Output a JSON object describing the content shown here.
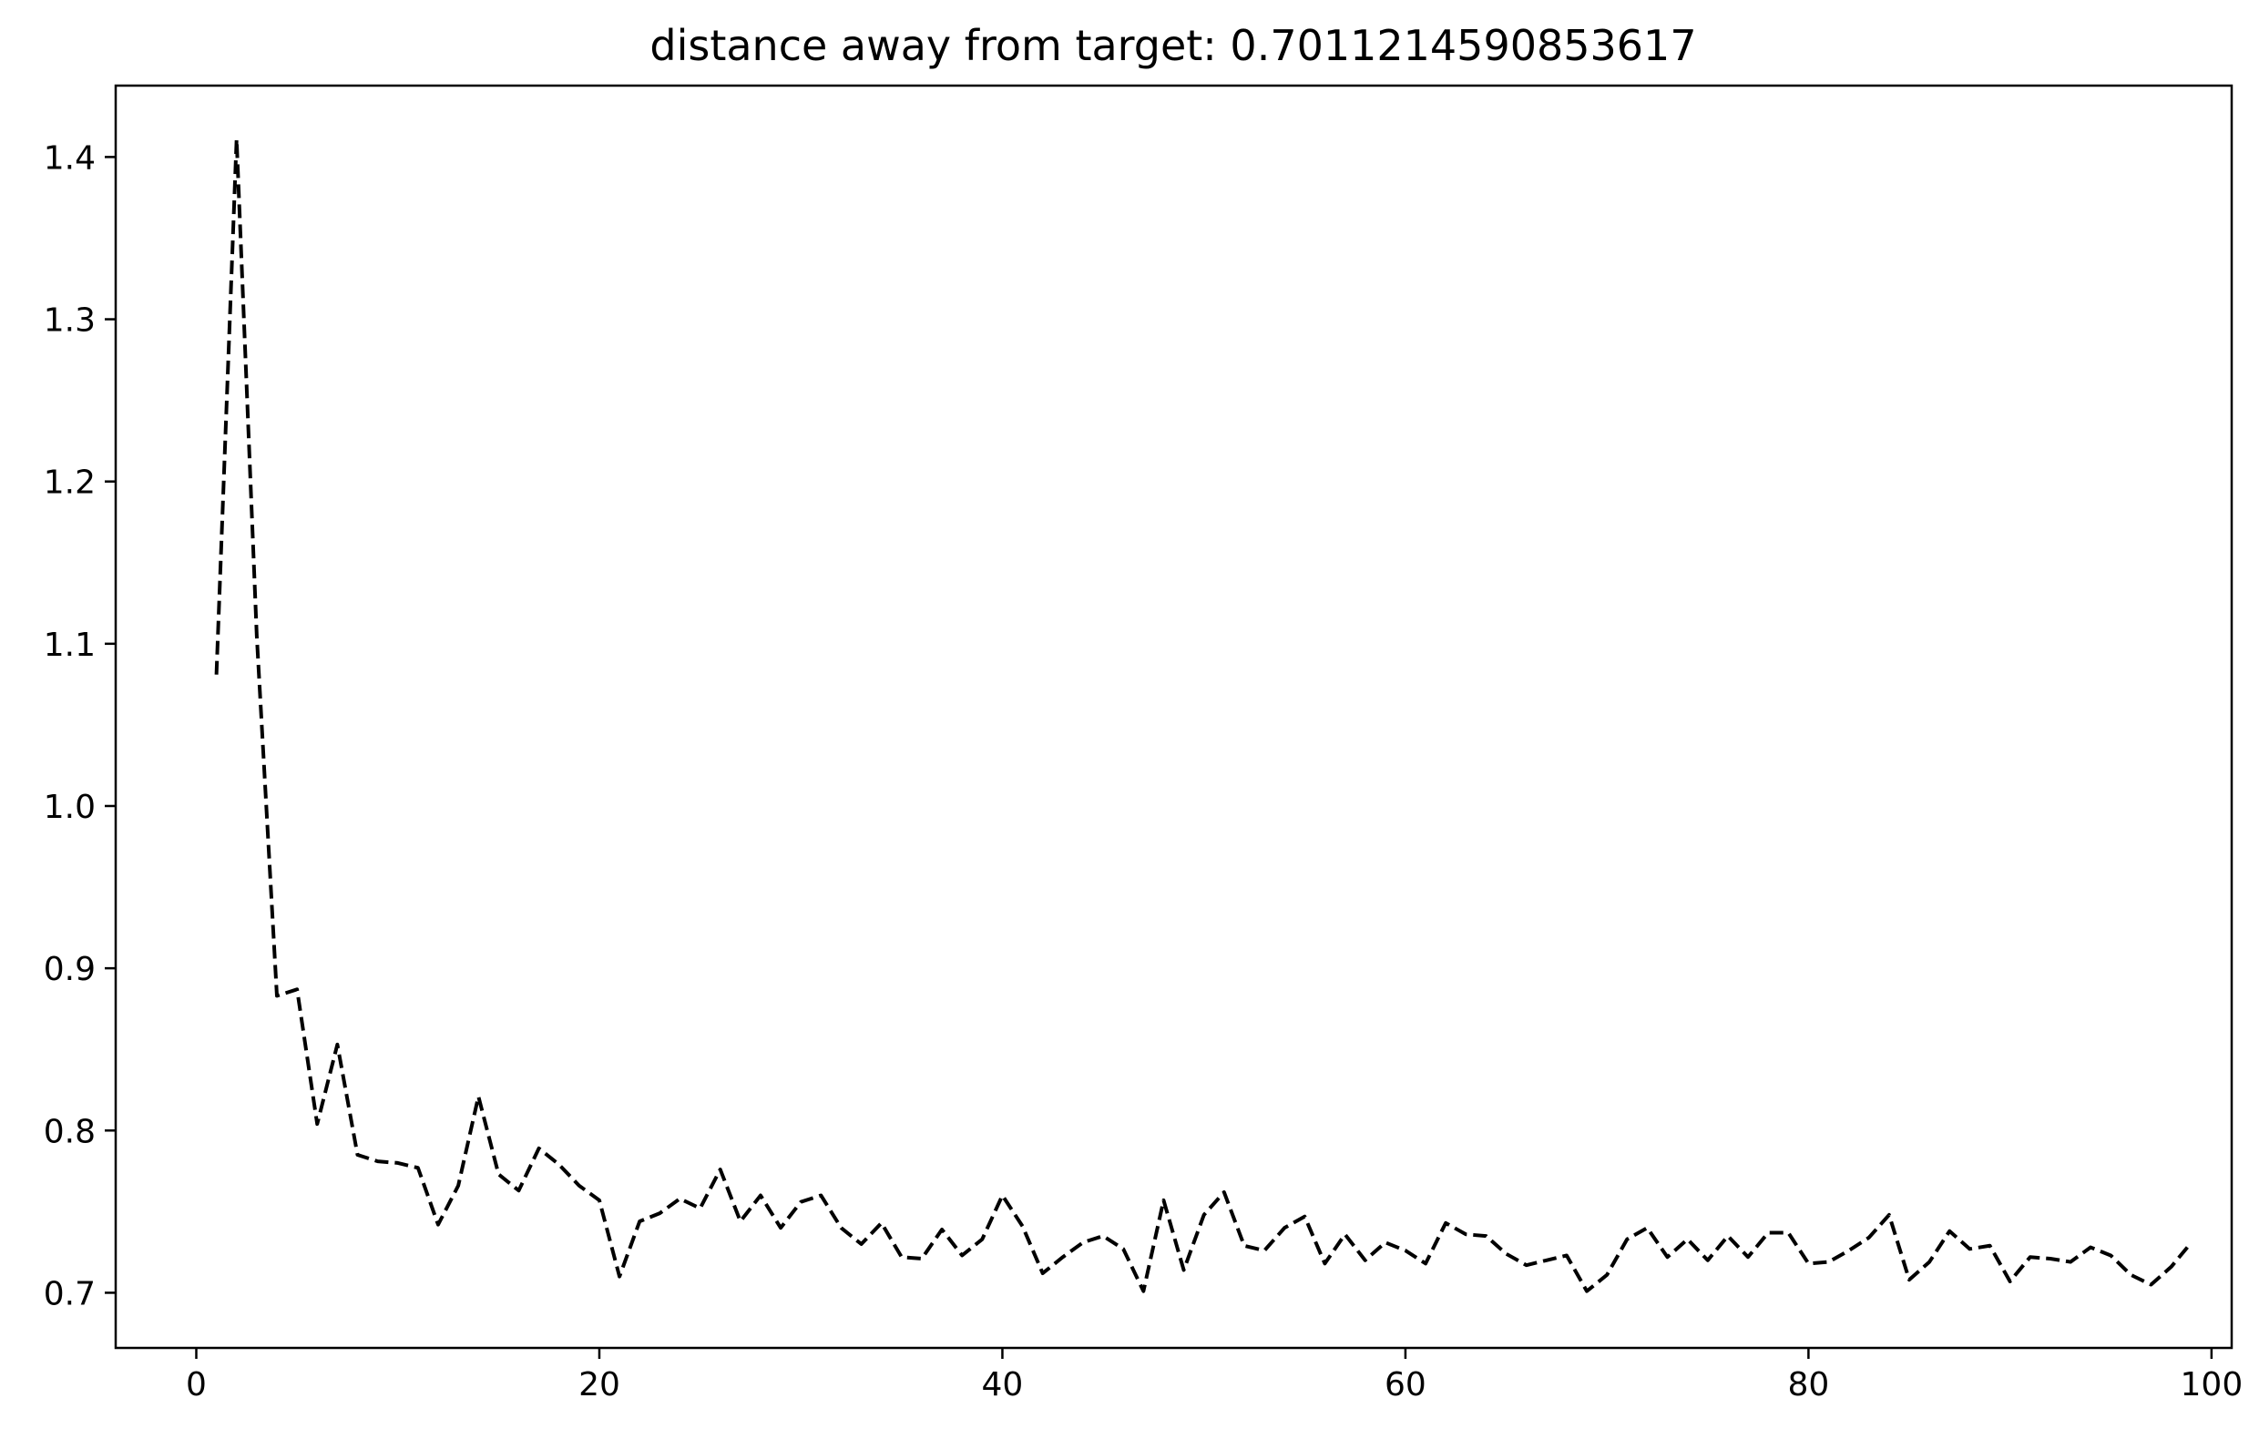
{
  "chart_data": {
    "type": "line",
    "title": "distance away from target: 0.7011214590853617",
    "xlabel": "",
    "ylabel": "",
    "xlim": [
      -4,
      101
    ],
    "ylim": [
      0.666,
      1.444
    ],
    "xticks": [
      0,
      20,
      40,
      60,
      80,
      100
    ],
    "yticks": [
      0.7,
      0.8,
      0.9,
      1.0,
      1.1,
      1.2,
      1.3,
      1.4
    ],
    "xtick_labels": [
      "0",
      "20",
      "40",
      "60",
      "80",
      "100"
    ],
    "ytick_labels": [
      "0.7",
      "0.8",
      "0.9",
      "1.0",
      "1.1",
      "1.2",
      "1.3",
      "1.4"
    ],
    "grid": false,
    "series": [
      {
        "color": "#000000",
        "style": "dashed",
        "x": [
          1,
          2,
          3,
          4,
          5,
          6,
          7,
          8,
          9,
          10,
          11,
          12,
          13,
          14,
          15,
          16,
          17,
          18,
          19,
          20,
          21,
          22,
          23,
          24,
          25,
          26,
          27,
          28,
          29,
          30,
          31,
          32,
          33,
          34,
          35,
          36,
          37,
          38,
          39,
          40,
          41,
          42,
          43,
          44,
          45,
          46,
          47,
          48,
          49,
          50,
          51,
          52,
          53,
          54,
          55,
          56,
          57,
          58,
          59,
          60,
          61,
          62,
          63,
          64,
          65,
          66,
          67,
          68,
          69,
          70,
          71,
          72,
          73,
          74,
          75,
          76,
          77,
          78,
          79,
          80,
          81,
          82,
          83,
          84,
          85,
          86,
          87,
          88,
          89,
          90,
          91,
          92,
          93,
          94,
          95,
          96,
          97,
          98,
          99
        ],
        "values": [
          1.081,
          1.411,
          1.105,
          0.883,
          0.887,
          0.804,
          0.853,
          0.785,
          0.781,
          0.78,
          0.777,
          0.742,
          0.766,
          0.821,
          0.773,
          0.763,
          0.789,
          0.779,
          0.766,
          0.757,
          0.71,
          0.744,
          0.749,
          0.758,
          0.752,
          0.776,
          0.744,
          0.76,
          0.74,
          0.756,
          0.76,
          0.74,
          0.73,
          0.743,
          0.722,
          0.721,
          0.739,
          0.723,
          0.733,
          0.76,
          0.741,
          0.712,
          0.722,
          0.731,
          0.735,
          0.727,
          0.701,
          0.757,
          0.714,
          0.748,
          0.762,
          0.729,
          0.726,
          0.74,
          0.747,
          0.718,
          0.736,
          0.72,
          0.731,
          0.726,
          0.718,
          0.743,
          0.736,
          0.735,
          0.724,
          0.717,
          0.72,
          0.723,
          0.701,
          0.711,
          0.733,
          0.74,
          0.722,
          0.733,
          0.72,
          0.735,
          0.722,
          0.737,
          0.737,
          0.718,
          0.719,
          0.726,
          0.734,
          0.748,
          0.708,
          0.719,
          0.738,
          0.727,
          0.729,
          0.707,
          0.722,
          0.721,
          0.719,
          0.728,
          0.723,
          0.711,
          0.705,
          0.716,
          0.731
        ]
      }
    ]
  }
}
